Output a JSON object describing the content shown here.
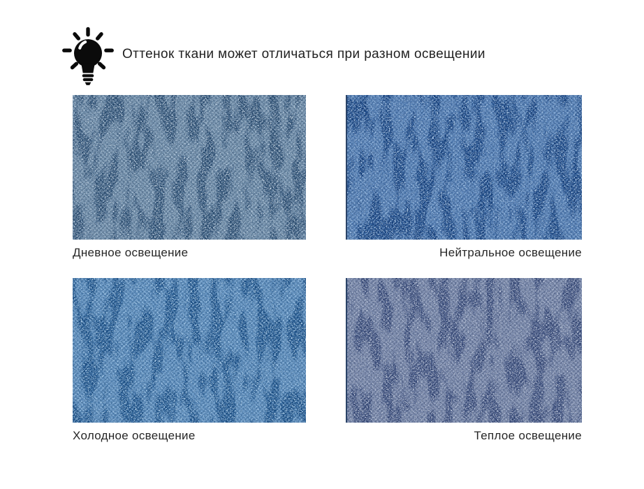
{
  "page": {
    "background": "#ffffff",
    "text_color": "#212121"
  },
  "header": {
    "icon": "lightbulb-icon",
    "icon_color": "#0b0b0b",
    "note": "Оттенок ткани может отличаться при разном освещении"
  },
  "swatches": [
    {
      "id": "daylight",
      "label": "Дневное освещение",
      "palette": {
        "base": "#7d9ebd",
        "light": "#c6d6e4",
        "mid_light": "#9fbad2",
        "dark": "#3a5f85",
        "deep": "#22446a"
      }
    },
    {
      "id": "neutral",
      "label": "Нейтральное освещение",
      "palette": {
        "base": "#4f85c5",
        "light": "#b6d3f0",
        "mid_light": "#85aede",
        "dark": "#1f4f92",
        "deep": "#123a74"
      }
    },
    {
      "id": "cold",
      "label": "Холодное освещение",
      "palette": {
        "base": "#5a91ca",
        "light": "#b4d5ef",
        "mid_light": "#8dbae4",
        "dark": "#26609a",
        "deep": "#184a80"
      }
    },
    {
      "id": "warm",
      "label": "Теплое освещение",
      "palette": {
        "base": "#8093b6",
        "light": "#c4cdde",
        "mid_light": "#a6b3cd",
        "dark": "#455a8a",
        "deep": "#2e4070"
      }
    }
  ],
  "label_color": "#262626"
}
